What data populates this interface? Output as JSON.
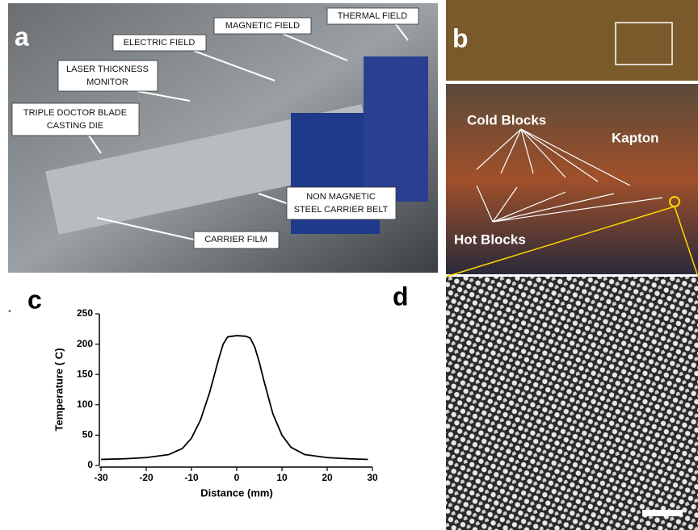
{
  "panels": {
    "a": {
      "letter": "a",
      "labels": {
        "thermal": "THERMAL FIELD",
        "magnetic": "MAGNETIC FIELD",
        "electric": "ELECTRIC FIELD",
        "laser": [
          "LASER THICKNESS",
          "MONITOR"
        ],
        "die": [
          "TRIPLE DOCTOR BLADE",
          "CASTING DIE"
        ],
        "belt": [
          "NON MAGNETIC",
          "STEEL CARRIER BELT"
        ],
        "film": "CARRIER FILM"
      }
    },
    "b": {
      "letter": "b",
      "labels": {
        "cold": "Cold Blocks",
        "kapton": "Kapton",
        "hot": "Hot Blocks"
      }
    },
    "c": {
      "letter": "c",
      "stray_mark": "°"
    },
    "d": {
      "letter": "d"
    }
  },
  "chart_data": {
    "type": "line",
    "xlabel": "Distance (mm)",
    "ylabel": "Temperature ( C)",
    "x": [
      -30,
      -25,
      -20,
      -15,
      -12,
      -10,
      -8,
      -6,
      -4,
      -3,
      -2,
      0,
      2,
      3,
      4,
      5,
      6,
      8,
      10,
      12,
      15,
      20,
      25,
      29
    ],
    "values": [
      10,
      11,
      13,
      18,
      28,
      45,
      75,
      120,
      175,
      200,
      212,
      214,
      213,
      210,
      195,
      170,
      140,
      85,
      50,
      30,
      18,
      13,
      11,
      10
    ],
    "color": "#000000",
    "xlim": [
      -30,
      30
    ],
    "xticks": [
      -30,
      -20,
      -10,
      0,
      10,
      20,
      30
    ],
    "ylim": [
      0,
      250
    ],
    "yticks": [
      0,
      50,
      100,
      150,
      200,
      250
    ]
  }
}
